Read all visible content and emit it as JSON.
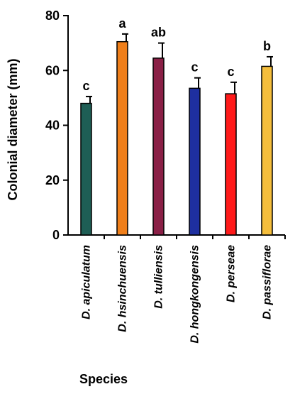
{
  "chart_data": {
    "type": "bar",
    "ylabel": "Colonial diameter (mm)",
    "xlabel": "Species",
    "ylim": [
      0,
      80
    ],
    "yticks": [
      0,
      20,
      40,
      60,
      80
    ],
    "grid": false,
    "categories": [
      "D. apiculatum",
      "D. hsinchuensis",
      "D. tulliensis",
      "D. hongkongensis",
      "D. perseae",
      "D. passiflorae"
    ],
    "values": [
      48,
      70.5,
      64.5,
      53.5,
      51.5,
      61.5
    ],
    "errors": [
      2.5,
      2.8,
      5.5,
      3.8,
      4.2,
      3.5
    ],
    "letters": [
      "c",
      "a",
      "ab",
      "c",
      "c",
      "b"
    ],
    "colors": [
      "#1E5E55",
      "#F07F1A",
      "#8A2046",
      "#1E2FA0",
      "#FF1A1A",
      "#F5BE3C"
    ]
  }
}
